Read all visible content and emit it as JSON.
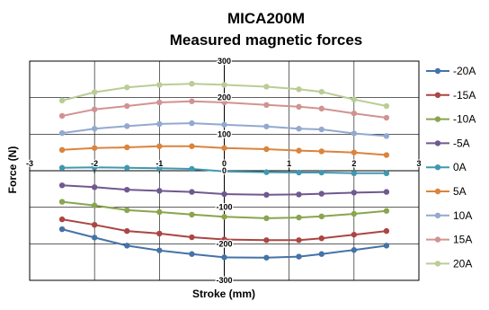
{
  "chart_data": {
    "type": "line",
    "title": "MICA200M",
    "subtitle": "Measured magnetic forces",
    "xlabel": "Stroke (mm)",
    "ylabel": "Force (N)",
    "xlim": [
      -3,
      3
    ],
    "ylim": [
      -300,
      300
    ],
    "xticks": [
      "-3",
      "-2",
      "-1",
      "0",
      "1",
      "2",
      "3"
    ],
    "yticks": [
      "300",
      "200",
      "100",
      "0",
      "-100",
      "-200",
      "-300"
    ],
    "grid": true,
    "legend_position": "right",
    "x": [
      -2.5,
      -2.0,
      -1.5,
      -1.0,
      -0.5,
      0.0,
      0.65,
      1.15,
      1.5,
      2.0,
      2.5
    ],
    "series": [
      {
        "name": "-20A",
        "color": "#4573A7",
        "values": [
          -160,
          -183,
          -205,
          -218,
          -228,
          -237,
          -238,
          -235,
          -228,
          -217,
          -205
        ]
      },
      {
        "name": "-15A",
        "color": "#AA4643",
        "values": [
          -133,
          -148,
          -165,
          -172,
          -182,
          -188,
          -190,
          -190,
          -185,
          -175,
          -165
        ]
      },
      {
        "name": "-10A",
        "color": "#89A54E",
        "values": [
          -85,
          -95,
          -108,
          -113,
          -120,
          -126,
          -130,
          -128,
          -125,
          -118,
          -110
        ]
      },
      {
        "name": "-5A",
        "color": "#71588F",
        "values": [
          -40,
          -45,
          -52,
          -55,
          -58,
          -64,
          -66,
          -65,
          -63,
          -60,
          -58
        ]
      },
      {
        "name": "0A",
        "color": "#4198AF",
        "values": [
          8,
          9,
          8,
          7,
          5,
          -2,
          -4,
          -5,
          -5,
          -7,
          -7
        ]
      },
      {
        "name": "5A",
        "color": "#DB843D",
        "values": [
          57,
          62,
          64,
          67,
          67,
          62,
          59,
          55,
          53,
          50,
          43
        ]
      },
      {
        "name": "10A",
        "color": "#93A9CF",
        "values": [
          103,
          115,
          122,
          128,
          130,
          126,
          121,
          115,
          113,
          102,
          95
        ]
      },
      {
        "name": "15A",
        "color": "#D19392",
        "values": [
          150,
          168,
          177,
          187,
          190,
          187,
          180,
          175,
          170,
          157,
          145
        ]
      },
      {
        "name": "20A",
        "color": "#B9CD96",
        "values": [
          192,
          215,
          228,
          235,
          238,
          235,
          230,
          223,
          216,
          195,
          177
        ]
      }
    ]
  }
}
